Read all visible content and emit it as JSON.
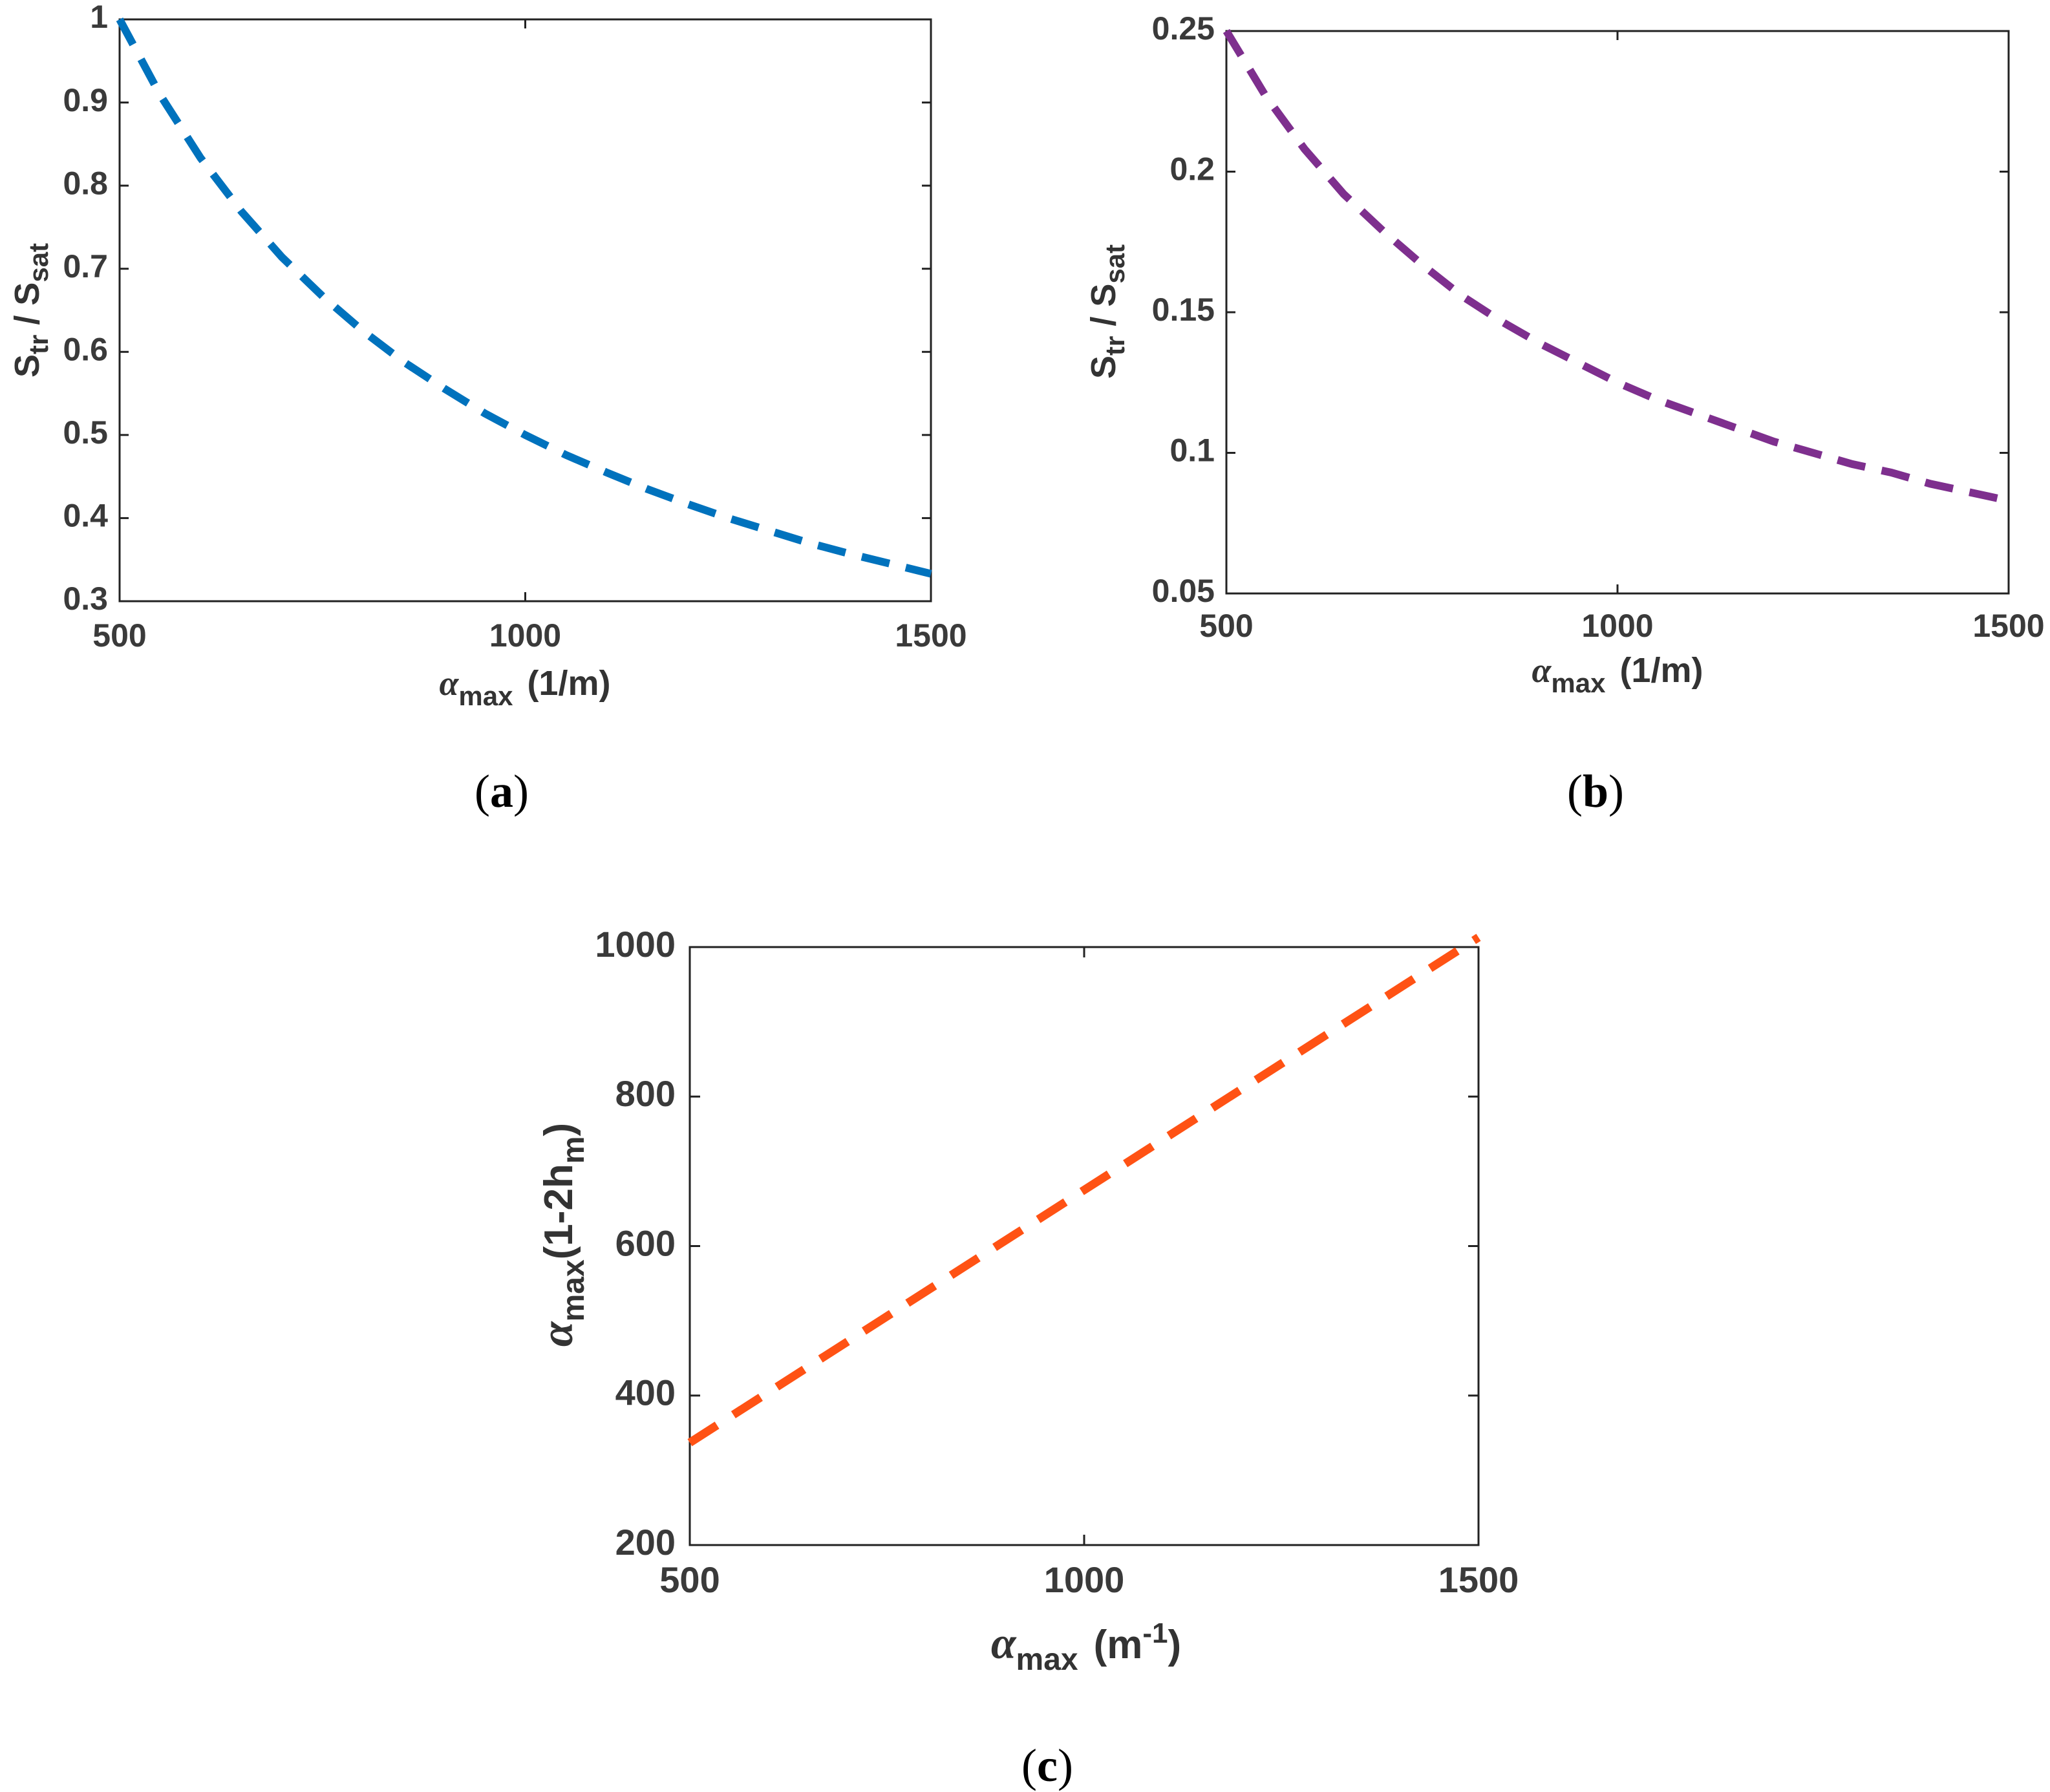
{
  "chart_data": [
    {
      "type": "line",
      "panel": "(a)",
      "caption_label": "a",
      "line_style": "dashed",
      "color": "#0072BD",
      "xlabel": {
        "symbol": "α",
        "subscript": "max",
        "unit": "(1/m)"
      },
      "ylabel": {
        "main": "S",
        "sub1": "tr",
        "mid": " / S",
        "sub2": "sat"
      },
      "xlim": [
        500,
        1500
      ],
      "ylim": [
        0.3,
        1.0
      ],
      "xticks": [
        500,
        1000,
        1500
      ],
      "xtick_labels": [
        "500",
        "1000",
        "1500"
      ],
      "yticks": [
        0.3,
        0.4,
        0.5,
        0.6,
        0.7,
        0.8,
        0.9,
        1.0
      ],
      "ytick_labels": [
        "0.3",
        "0.4",
        "0.5",
        "0.6",
        "0.7",
        "0.8",
        "0.9",
        "1"
      ],
      "series": [
        {
          "name": "S_tr/S_sat",
          "x": [
            500,
            550,
            600,
            650,
            700,
            750,
            800,
            850,
            900,
            950,
            1000,
            1050,
            1100,
            1150,
            1200,
            1250,
            1300,
            1350,
            1400,
            1450,
            1500
          ],
          "y": [
            1.0,
            0.909,
            0.833,
            0.769,
            0.714,
            0.667,
            0.625,
            0.588,
            0.556,
            0.526,
            0.5,
            0.476,
            0.455,
            0.435,
            0.417,
            0.4,
            0.385,
            0.37,
            0.357,
            0.345,
            0.333
          ]
        }
      ]
    },
    {
      "type": "line",
      "panel": "(b)",
      "caption_label": "b",
      "line_style": "dashed",
      "color": "#7E2F8E",
      "xlabel": {
        "symbol": "α",
        "subscript": "max",
        "unit": "(1/m)"
      },
      "ylabel": {
        "main": "S",
        "sub1": "tr",
        "mid": " / S",
        "sub2": "sat"
      },
      "xlim": [
        500,
        1500
      ],
      "ylim": [
        0.05,
        0.25
      ],
      "xticks": [
        500,
        1000,
        1500
      ],
      "xtick_labels": [
        "500",
        "1000",
        "1500"
      ],
      "yticks": [
        0.05,
        0.1,
        0.15,
        0.2,
        0.25
      ],
      "ytick_labels": [
        "0.05",
        "0.1",
        "0.15",
        "0.2",
        "0.25"
      ],
      "series": [
        {
          "name": "S_tr/S_sat",
          "x": [
            500,
            550,
            600,
            650,
            700,
            750,
            800,
            850,
            900,
            950,
            1000,
            1050,
            1100,
            1150,
            1200,
            1250,
            1300,
            1350,
            1400,
            1450,
            1500
          ],
          "y": [
            0.25,
            0.227,
            0.208,
            0.192,
            0.179,
            0.167,
            0.156,
            0.147,
            0.139,
            0.132,
            0.125,
            0.119,
            0.114,
            0.109,
            0.104,
            0.1,
            0.096,
            0.093,
            0.089,
            0.086,
            0.083
          ]
        }
      ]
    },
    {
      "type": "line",
      "panel": "(c)",
      "caption_label": "c",
      "line_style": "dashed",
      "color": "#FF5214",
      "xlabel": {
        "symbol": "α",
        "subscript": "max",
        "unit_base": "(m",
        "unit_sup": "-1",
        "unit_close": ")"
      },
      "ylabel": {
        "symbol": "α",
        "subscript": "max",
        "rest": "(1-2h",
        "sub2": "m",
        "close": ")"
      },
      "xlim": [
        500,
        1500
      ],
      "ylim": [
        200,
        1000
      ],
      "xticks": [
        500,
        1000,
        1500
      ],
      "xtick_labels": [
        "500",
        "1000",
        "1500"
      ],
      "yticks": [
        200,
        400,
        600,
        800,
        1000
      ],
      "ytick_labels": [
        "200",
        "400",
        "600",
        "800",
        "1000"
      ],
      "series": [
        {
          "name": "alpha_max(1-2h_m)",
          "x": [
            500,
            1500
          ],
          "y": [
            337,
            1013
          ]
        }
      ]
    }
  ]
}
